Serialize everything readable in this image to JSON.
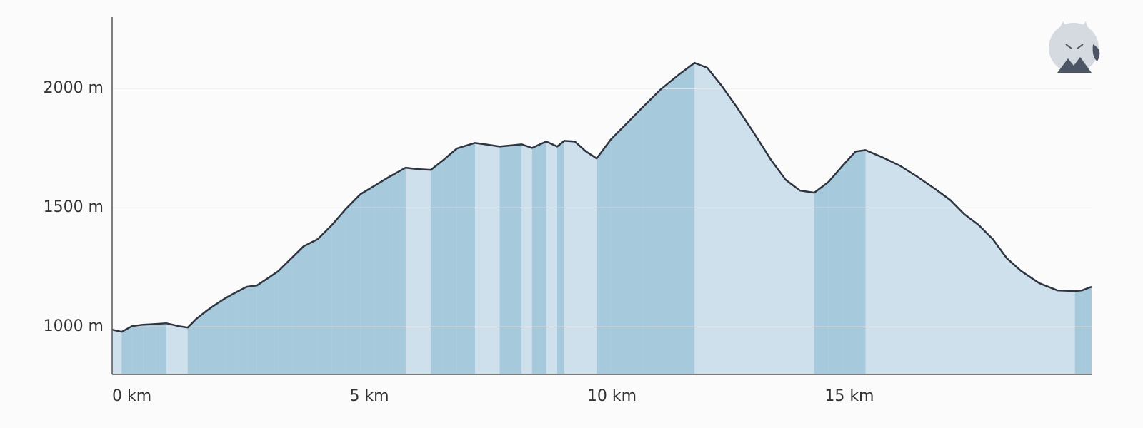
{
  "chart_data": {
    "type": "area",
    "x": [
      0,
      0.2,
      0.42,
      0.65,
      0.92,
      1.14,
      1.4,
      1.59,
      1.77,
      2.0,
      2.15,
      2.38,
      2.6,
      2.83,
      3.05,
      3.28,
      3.5,
      3.8,
      4.03,
      4.33,
      4.63,
      4.93,
      5.23,
      5.53,
      5.83,
      6.18,
      6.44,
      6.71,
      6.96,
      7.26,
      7.64,
      7.86,
      8.16,
      8.62,
      8.84,
      9.14,
      9.37,
      9.52,
      9.74,
      9.97,
      10.2,
      10.5,
      10.8,
      11.17,
      11.55,
      11.92,
      12.26,
      12.53,
      12.83,
      13.13,
      13.5,
      13.88,
      14.18,
      14.48,
      14.78,
      15.08,
      15.38,
      15.65,
      15.86,
      16.2,
      16.58,
      16.96,
      17.33,
      17.64,
      17.94,
      18.24,
      18.54,
      18.84,
      19.14,
      19.52,
      19.9,
      20.27,
      20.42,
      20.62
    ],
    "values": [
      988,
      979,
      1003,
      1009,
      1012,
      1015,
      1003,
      997,
      1033,
      1069,
      1090,
      1120,
      1144,
      1168,
      1174,
      1204,
      1234,
      1293,
      1338,
      1368,
      1428,
      1497,
      1557,
      1593,
      1629,
      1668,
      1662,
      1659,
      1698,
      1749,
      1772,
      1766,
      1757,
      1766,
      1751,
      1778,
      1757,
      1781,
      1778,
      1737,
      1707,
      1787,
      1847,
      1922,
      1997,
      2057,
      2108,
      2087,
      2012,
      1928,
      1817,
      1698,
      1617,
      1572,
      1563,
      1608,
      1677,
      1736,
      1742,
      1713,
      1677,
      1629,
      1578,
      1533,
      1473,
      1428,
      1368,
      1287,
      1234,
      1183,
      1153,
      1150,
      1153,
      1168
    ],
    "xlim": [
      0,
      20.62
    ],
    "ylim": [
      800,
      2300
    ],
    "xticks": [
      {
        "value": 0,
        "label": "0 km"
      },
      {
        "value": 5,
        "label": "5 km"
      },
      {
        "value": 10,
        "label": "10 km"
      },
      {
        "value": 15,
        "label": "15 km"
      }
    ],
    "yticks": [
      {
        "value": 1000,
        "label": "1000 m"
      },
      {
        "value": 1500,
        "label": "1500 m"
      },
      {
        "value": 2000,
        "label": "2000 m"
      }
    ],
    "grid": true,
    "line_color": "#2e3440",
    "fill_color": "#cde0eb",
    "climb_color": "#a7c9dc"
  }
}
